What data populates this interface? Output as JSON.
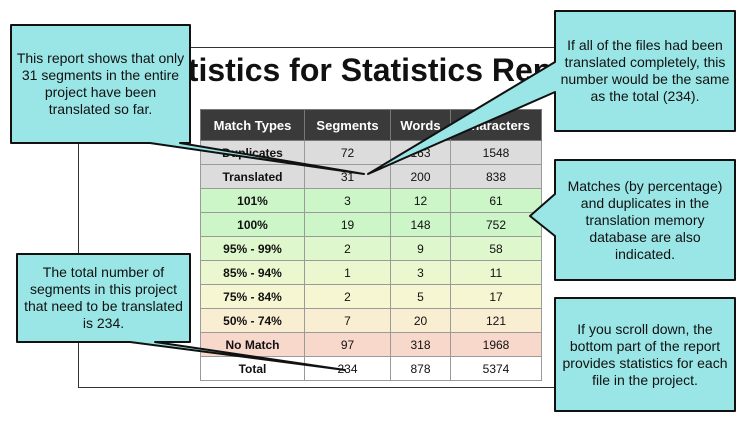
{
  "report": {
    "title": "Statistics for Statistics Report",
    "headers": [
      "Match Types",
      "Segments",
      "Words",
      "Characters"
    ],
    "rows": [
      {
        "type": "Duplicates",
        "segments": "72",
        "words": "163",
        "characters": "1548",
        "color": "#dcdcdc"
      },
      {
        "type": "Translated",
        "segments": "31",
        "words": "200",
        "characters": "838",
        "color": "#dcdcdc"
      },
      {
        "type": "101%",
        "segments": "3",
        "words": "12",
        "characters": "61",
        "color": "#ccf5c8"
      },
      {
        "type": "100%",
        "segments": "19",
        "words": "148",
        "characters": "752",
        "color": "#ccf5c8"
      },
      {
        "type": "95% - 99%",
        "segments": "2",
        "words": "9",
        "characters": "58",
        "color": "#dff7cc"
      },
      {
        "type": "85% - 94%",
        "segments": "1",
        "words": "3",
        "characters": "11",
        "color": "#ebf8cf"
      },
      {
        "type": "75% - 84%",
        "segments": "2",
        "words": "5",
        "characters": "17",
        "color": "#f6f6d2"
      },
      {
        "type": "50% - 74%",
        "segments": "7",
        "words": "20",
        "characters": "121",
        "color": "#faeed2"
      },
      {
        "type": "No Match",
        "segments": "97",
        "words": "318",
        "characters": "1968",
        "color": "#f9d8cc"
      },
      {
        "type": "Total",
        "segments": "234",
        "words": "878",
        "characters": "5374",
        "color": "#ffffff"
      }
    ]
  },
  "callouts": {
    "translated_so_far": "This report shows that only 31 segments in the entire project have been translated so far.",
    "all_translated": "If all of the files had been translated completely, this number would be the same as the total (234).",
    "matches": "Matches (by percentage) and duplicates in the translation memory database are also indicated.",
    "total_segments": "The total number of segments in this project that need to be translated is 234.",
    "scroll_down": "If you scroll down, the bottom part of the report provides statistics for each file in the project."
  },
  "colors": {
    "callout_fill": "#9ae6e6",
    "callout_border": "#111111",
    "header_bg": "#3a3a3a"
  }
}
